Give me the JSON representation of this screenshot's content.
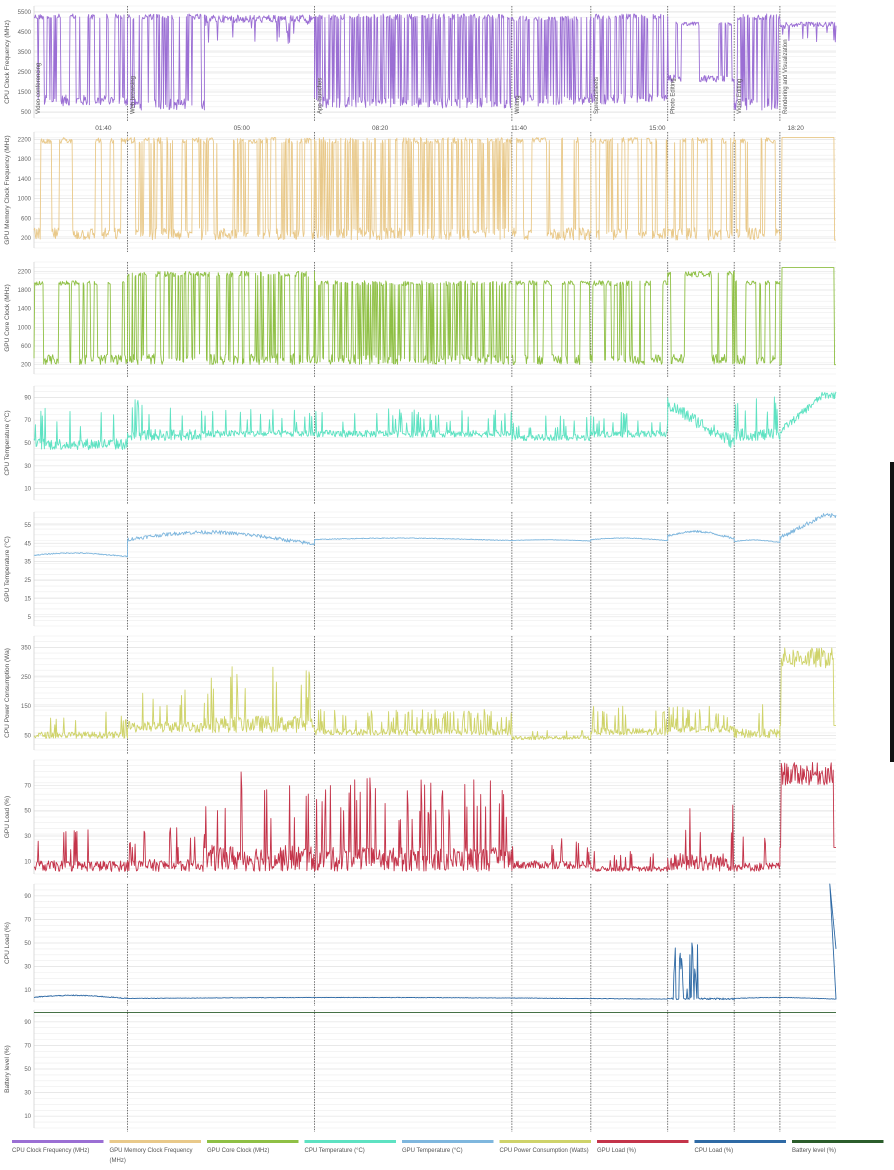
{
  "chart_data": {
    "type": "line",
    "x_ticks": [
      "01:40",
      "05:00",
      "08:20",
      "11:40",
      "15:00",
      "18:20"
    ],
    "activities": [
      {
        "label": "Video conferencing",
        "start": 0
      },
      {
        "label": "Web browsing",
        "start": 2.25
      },
      {
        "label": "App launches",
        "start": 6.75
      },
      {
        "label": "Writing",
        "start": 11.5
      },
      {
        "label": "Spreadsheets",
        "start": 13.4
      },
      {
        "label": "Photo Editing",
        "start": 15.25
      },
      {
        "label": "Video Editing",
        "start": 16.85
      },
      {
        "label": "Rendering and Visualization",
        "start": 17.95
      }
    ],
    "series": [
      {
        "name": "CPU Clock Frequency (MHz)",
        "ylabel": "CPU Clock Frequency (MHz)",
        "color": "#9b6fd4",
        "yticks": [
          500,
          1500,
          2500,
          3500,
          4500,
          5500
        ],
        "ylim": [
          200,
          5800
        ],
        "segments": [
          {
            "start": 0,
            "end": 2.25,
            "low": 800,
            "high": 5400,
            "style": "square",
            "density": 1.2
          },
          {
            "start": 2.25,
            "end": 4.1,
            "low": 600,
            "high": 5400,
            "style": "square",
            "density": 1.3
          },
          {
            "start": 4.1,
            "end": 6.75,
            "low": 3800,
            "high": 5350,
            "style": "noisy",
            "density": 0.8
          },
          {
            "start": 6.75,
            "end": 11.5,
            "low": 700,
            "high": 5400,
            "style": "square",
            "density": 2.2
          },
          {
            "start": 11.5,
            "end": 13.4,
            "low": 800,
            "high": 5300,
            "style": "square",
            "density": 1.6
          },
          {
            "start": 13.4,
            "end": 15.25,
            "low": 900,
            "high": 5400,
            "style": "square",
            "density": 1.4
          },
          {
            "start": 15.25,
            "end": 16.85,
            "low": 2000,
            "high": 5000,
            "style": "square",
            "density": 0.5
          },
          {
            "start": 16.85,
            "end": 17.95,
            "low": 600,
            "high": 5400,
            "style": "square",
            "density": 1.6
          },
          {
            "start": 17.95,
            "end": 19.3,
            "low": 4000,
            "high": 5000,
            "style": "noisy",
            "density": 0.6
          }
        ]
      },
      {
        "name": "GPU Memory Clock Frequency (MHz)",
        "ylabel": "GPU Memory Clock Frequency (MHz)",
        "color": "#e9c98a",
        "yticks": [
          200,
          600,
          1000,
          1400,
          1800,
          2200
        ],
        "ylim": [
          0,
          2350
        ],
        "segments": [
          {
            "start": 0,
            "end": 2.25,
            "low": 160,
            "high": 2240,
            "style": "square",
            "density": 0.35
          },
          {
            "start": 2.25,
            "end": 6.75,
            "low": 160,
            "high": 2240,
            "style": "square",
            "density": 1.1
          },
          {
            "start": 6.75,
            "end": 11.5,
            "low": 160,
            "high": 2240,
            "style": "square",
            "density": 1.8
          },
          {
            "start": 11.5,
            "end": 13.4,
            "low": 160,
            "high": 2240,
            "style": "square",
            "density": 0.5
          },
          {
            "start": 13.4,
            "end": 15.25,
            "low": 160,
            "high": 2240,
            "style": "square",
            "density": 0.8
          },
          {
            "start": 15.25,
            "end": 16.85,
            "low": 160,
            "high": 2240,
            "style": "square",
            "density": 0.4
          },
          {
            "start": 16.85,
            "end": 17.95,
            "low": 160,
            "high": 2240,
            "style": "square",
            "density": 0.5
          },
          {
            "start": 17.95,
            "end": 19.3,
            "low": 160,
            "high": 2240,
            "style": "plateau",
            "density": 0
          }
        ]
      },
      {
        "name": "GPU Core Clock (MHz)",
        "ylabel": "GPU Core Clock (MHz)",
        "color": "#8fc045",
        "yticks": [
          200,
          600,
          1000,
          1400,
          1800,
          2200
        ],
        "ylim": [
          0,
          2400
        ],
        "segments": [
          {
            "start": 0,
            "end": 2.25,
            "low": 200,
            "high": 2000,
            "style": "square",
            "density": 0.35
          },
          {
            "start": 2.25,
            "end": 6.75,
            "low": 200,
            "high": 2200,
            "style": "square",
            "density": 1.1
          },
          {
            "start": 6.75,
            "end": 11.5,
            "low": 200,
            "high": 2000,
            "style": "square",
            "density": 1.8
          },
          {
            "start": 11.5,
            "end": 13.4,
            "low": 200,
            "high": 2000,
            "style": "square",
            "density": 0.5
          },
          {
            "start": 13.4,
            "end": 15.25,
            "low": 200,
            "high": 2000,
            "style": "square",
            "density": 0.8
          },
          {
            "start": 15.25,
            "end": 16.85,
            "low": 200,
            "high": 2200,
            "style": "square",
            "density": 0.4
          },
          {
            "start": 16.85,
            "end": 17.95,
            "low": 200,
            "high": 2000,
            "style": "square",
            "density": 0.5
          },
          {
            "start": 17.95,
            "end": 19.3,
            "low": 200,
            "high": 2280,
            "style": "plateau",
            "density": 0
          }
        ]
      },
      {
        "name": "CPU Temperature (°C)",
        "ylabel": "CPU Temperature (°C)",
        "color": "#5ee2c2",
        "yticks": [
          10,
          30,
          50,
          70,
          90
        ],
        "ylim": [
          0,
          100
        ],
        "segments": [
          {
            "start": 0,
            "end": 2.25,
            "low": 44,
            "high": 84,
            "style": "spiky",
            "density": 0.7
          },
          {
            "start": 2.25,
            "end": 4.1,
            "low": 52,
            "high": 92,
            "style": "spiky",
            "density": 1.2
          },
          {
            "start": 4.1,
            "end": 6.75,
            "low": 55,
            "high": 80,
            "style": "spiky",
            "density": 1.2
          },
          {
            "start": 6.75,
            "end": 11.5,
            "low": 55,
            "high": 80,
            "style": "spiky",
            "density": 2.0
          },
          {
            "start": 11.5,
            "end": 13.4,
            "low": 52,
            "high": 74,
            "style": "spiky",
            "density": 1.6
          },
          {
            "start": 13.4,
            "end": 15.25,
            "low": 55,
            "high": 78,
            "style": "spiky",
            "density": 1.6
          },
          {
            "start": 15.25,
            "end": 16.85,
            "low": 50,
            "high": 84,
            "style": "decay",
            "density": 1.0
          },
          {
            "start": 16.85,
            "end": 17.95,
            "low": 52,
            "high": 94,
            "style": "spiky",
            "density": 1.4
          },
          {
            "start": 17.95,
            "end": 19.3,
            "low": 60,
            "high": 92,
            "style": "rise",
            "density": 1.0
          }
        ]
      },
      {
        "name": "GPU Temperature (°C)",
        "ylabel": "GPU Temperature (°C)",
        "color": "#7fb7de",
        "yticks": [
          5,
          15,
          25,
          35,
          45,
          55
        ],
        "ylim": [
          0,
          62
        ],
        "segments": [
          {
            "start": 0,
            "end": 2.25,
            "low": 37,
            "high": 40,
            "style": "smooth",
            "density": 0.3
          },
          {
            "start": 2.25,
            "end": 6.75,
            "low": 42,
            "high": 52,
            "style": "smooth",
            "density": 0.4
          },
          {
            "start": 6.75,
            "end": 11.5,
            "low": 46,
            "high": 48,
            "style": "smooth",
            "density": 0.3
          },
          {
            "start": 11.5,
            "end": 13.4,
            "low": 46,
            "high": 47,
            "style": "smooth",
            "density": 0.3
          },
          {
            "start": 13.4,
            "end": 15.25,
            "low": 46,
            "high": 48,
            "style": "smooth",
            "density": 0.3
          },
          {
            "start": 15.25,
            "end": 16.85,
            "low": 46,
            "high": 52,
            "style": "smooth",
            "density": 0.4
          },
          {
            "start": 16.85,
            "end": 17.95,
            "low": 45,
            "high": 47,
            "style": "smooth",
            "density": 0.3
          },
          {
            "start": 17.95,
            "end": 19.3,
            "low": 48,
            "high": 60,
            "style": "rise",
            "density": 0.5
          }
        ]
      },
      {
        "name": "CPU Power Consumption (Watts)",
        "ylabel": "CPU Power Consumption (Wa)",
        "color": "#cfd36a",
        "yticks": [
          50,
          150,
          250,
          350
        ],
        "ylim": [
          0,
          390
        ],
        "segments": [
          {
            "start": 0,
            "end": 2.25,
            "low": 40,
            "high": 130,
            "style": "spiky",
            "density": 0.6
          },
          {
            "start": 2.25,
            "end": 4.1,
            "low": 60,
            "high": 210,
            "style": "spiky",
            "density": 1.4
          },
          {
            "start": 4.1,
            "end": 6.75,
            "low": 60,
            "high": 290,
            "style": "spiky",
            "density": 1.2
          },
          {
            "start": 6.75,
            "end": 11.5,
            "low": 50,
            "high": 140,
            "style": "spiky",
            "density": 2.2
          },
          {
            "start": 11.5,
            "end": 13.4,
            "low": 35,
            "high": 90,
            "style": "spiky",
            "density": 1.2
          },
          {
            "start": 13.4,
            "end": 15.25,
            "low": 50,
            "high": 150,
            "style": "spiky",
            "density": 1.6
          },
          {
            "start": 15.25,
            "end": 16.85,
            "low": 60,
            "high": 150,
            "style": "spiky",
            "density": 1.5
          },
          {
            "start": 16.85,
            "end": 17.95,
            "low": 40,
            "high": 170,
            "style": "spiky",
            "density": 0.8
          },
          {
            "start": 17.95,
            "end": 19.3,
            "low": 280,
            "high": 350,
            "style": "plateau-noisy",
            "density": 1.0
          }
        ]
      },
      {
        "name": "GPU Load (%)",
        "ylabel": "GPU Load (%)",
        "color": "#c4344a",
        "yticks": [
          10,
          30,
          50,
          70
        ],
        "ylim": [
          0,
          90
        ],
        "segments": [
          {
            "start": 0,
            "end": 2.25,
            "low": 2,
            "high": 36,
            "style": "spiky",
            "density": 0.6
          },
          {
            "start": 2.25,
            "end": 4.1,
            "low": 2,
            "high": 40,
            "style": "spiky",
            "density": 1.2
          },
          {
            "start": 4.1,
            "end": 6.75,
            "low": 2,
            "high": 85,
            "style": "spiky",
            "density": 1.0
          },
          {
            "start": 6.75,
            "end": 11.5,
            "low": 2,
            "high": 78,
            "style": "spiky",
            "density": 1.8
          },
          {
            "start": 11.5,
            "end": 13.4,
            "low": 4,
            "high": 30,
            "style": "spiky",
            "density": 1.2
          },
          {
            "start": 13.4,
            "end": 15.25,
            "low": 2,
            "high": 18,
            "style": "spiky",
            "density": 1.2
          },
          {
            "start": 15.25,
            "end": 16.85,
            "low": 2,
            "high": 60,
            "style": "spiky",
            "density": 0.8
          },
          {
            "start": 16.85,
            "end": 17.95,
            "low": 2,
            "high": 30,
            "style": "spiky",
            "density": 0.7
          },
          {
            "start": 17.95,
            "end": 19.3,
            "low": 70,
            "high": 88,
            "style": "plateau-noisy",
            "density": 1.0
          }
        ]
      },
      {
        "name": "CPU Load (%)",
        "ylabel": "CPU Load (%)",
        "color": "#2f6aa5",
        "yticks": [
          10,
          30,
          50,
          70,
          90
        ],
        "ylim": [
          0,
          100
        ],
        "segments": [
          {
            "start": 0,
            "end": 2.25,
            "low": 2,
            "high": 6,
            "style": "smooth",
            "density": 0.3
          },
          {
            "start": 2.25,
            "end": 15.25,
            "low": 2,
            "high": 4,
            "style": "smooth",
            "density": 0.3
          },
          {
            "start": 15.25,
            "end": 16.85,
            "low": 2,
            "high": 55,
            "style": "burst",
            "density": 0.6
          },
          {
            "start": 16.85,
            "end": 19.3,
            "low": 2,
            "high": 4,
            "style": "smooth",
            "density": 0.3
          }
        ],
        "tail": [
          {
            "t": 19.15,
            "v": 100
          },
          {
            "t": 19.3,
            "v": 45
          }
        ]
      },
      {
        "name": "Battery level (%)",
        "ylabel": "Battery level (%)",
        "color": "#2b5d2b",
        "yticks": [
          10,
          30,
          50,
          70,
          90
        ],
        "ylim": [
          0,
          100
        ],
        "segments": [
          {
            "start": 0,
            "end": 19.3,
            "low": 98,
            "high": 98,
            "style": "flat",
            "density": 0
          }
        ]
      }
    ]
  },
  "legend": [
    {
      "label": "CPU Clock Frequency (MHz)",
      "color": "#9b6fd4"
    },
    {
      "label": "GPU Memory Clock Frequency (MHz)",
      "color": "#e9c98a"
    },
    {
      "label": "GPU Core Clock (MHz)",
      "color": "#8fc045"
    },
    {
      "label": "CPU Temperature (°C)",
      "color": "#5ee2c2"
    },
    {
      "label": "GPU Temperature (°C)",
      "color": "#7fb7de"
    },
    {
      "label": "CPU Power Consumption (Watts)",
      "color": "#cfd36a"
    },
    {
      "label": "GPU Load (%)",
      "color": "#c4344a"
    },
    {
      "label": "CPU Load (%)",
      "color": "#2f6aa5"
    },
    {
      "label": "Battery level (%)",
      "color": "#2b5d2b"
    }
  ]
}
